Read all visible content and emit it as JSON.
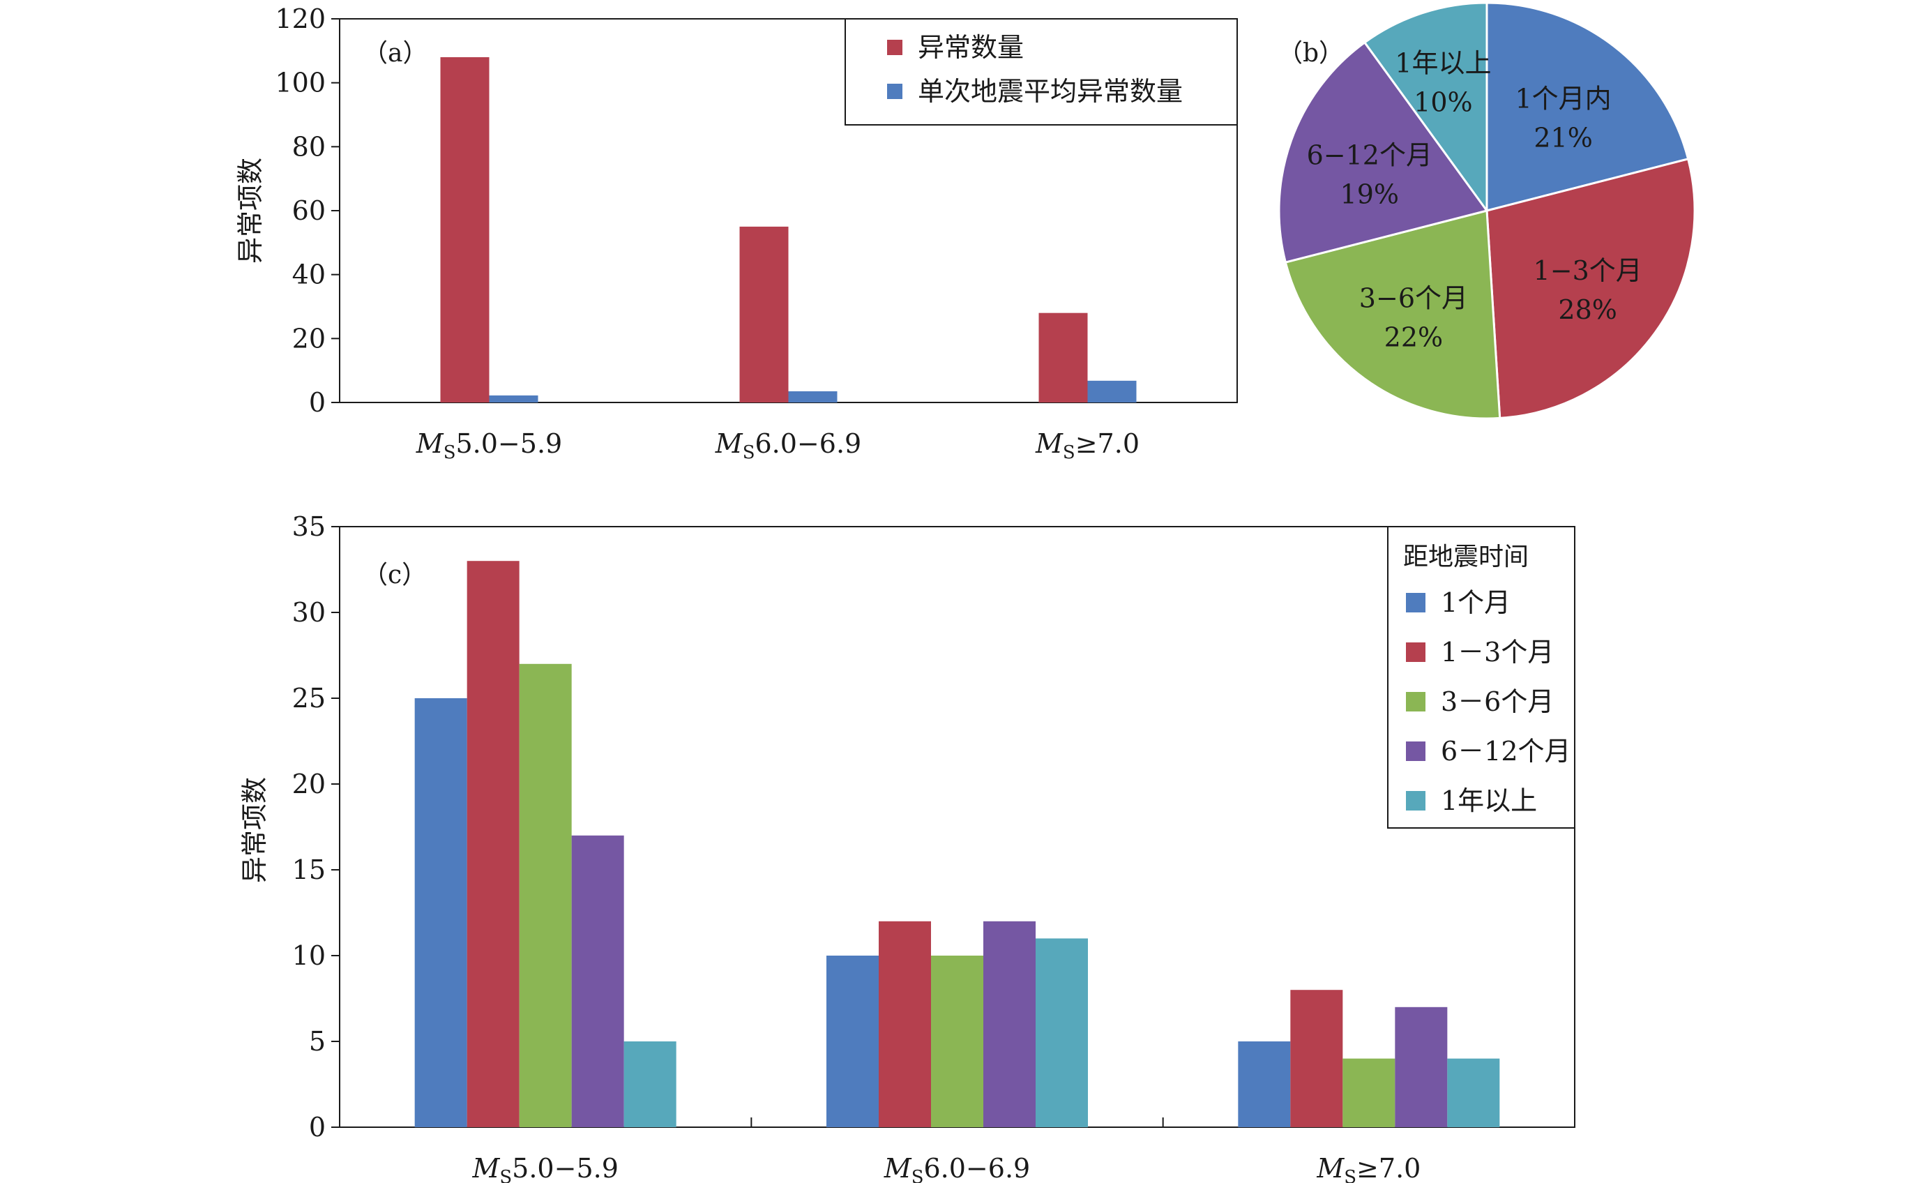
{
  "chart_data": [
    {
      "type": "bar",
      "panel_label": "（a）",
      "categories": [
        {
          "prefix": "M",
          "sub": "S",
          "text": "5.0−5.9"
        },
        {
          "prefix": "M",
          "sub": "S",
          "text": "6.0−6.9"
        },
        {
          "prefix": "M",
          "sub": "S",
          "text": "≥7.0"
        }
      ],
      "ylabel": "异常项数",
      "ylim": [
        0,
        120
      ],
      "yticks": [
        0,
        20,
        40,
        60,
        80,
        100,
        120
      ],
      "legend_position": "top-right",
      "series": [
        {
          "name": "异常数量",
          "color": "#b5404e",
          "values": [
            108,
            55,
            28
          ]
        },
        {
          "name": "单次地震平均异常数量",
          "color": "#4f7cbe",
          "values": [
            2.2,
            3.5,
            6.8
          ]
        }
      ]
    },
    {
      "type": "pie",
      "panel_label": "（b）",
      "slices": [
        {
          "name": "1个月内",
          "percent_label": "21%",
          "value": 21,
          "color": "#4f7cbe"
        },
        {
          "name": "1−3个月",
          "percent_label": "28%",
          "value": 28,
          "color": "#b5404e"
        },
        {
          "name": "3−6个月",
          "percent_label": "22%",
          "value": 22,
          "color": "#8bb654"
        },
        {
          "name": "6−12个月",
          "percent_label": "19%",
          "value": 19,
          "color": "#7557a3"
        },
        {
          "name": "1年以上",
          "percent_label": "10%",
          "value": 10,
          "color": "#57a8bb"
        }
      ]
    },
    {
      "type": "bar",
      "panel_label": "（c）",
      "categories": [
        {
          "prefix": "M",
          "sub": "S",
          "text": "5.0−5.9"
        },
        {
          "prefix": "M",
          "sub": "S",
          "text": "6.0−6.9"
        },
        {
          "prefix": "M",
          "sub": "S",
          "text": "≥7.0"
        }
      ],
      "ylabel": "异常项数",
      "ylim": [
        0,
        35
      ],
      "yticks": [
        0,
        5,
        10,
        15,
        20,
        25,
        30,
        35
      ],
      "legend_position": "top-right",
      "legend_title": "距地震时间",
      "series": [
        {
          "name": "1个月",
          "color": "#4f7cbe",
          "values": [
            25,
            10,
            5
          ]
        },
        {
          "name": "1－3个月",
          "color": "#b5404e",
          "values": [
            33,
            12,
            8
          ]
        },
        {
          "name": "3－6个月",
          "color": "#8bb654",
          "values": [
            27,
            10,
            4
          ]
        },
        {
          "name": "6－12个月",
          "color": "#7557a3",
          "values": [
            17,
            12,
            7
          ]
        },
        {
          "name": "1年以上",
          "color": "#57a8bb",
          "values": [
            5,
            11,
            4
          ]
        }
      ]
    }
  ]
}
